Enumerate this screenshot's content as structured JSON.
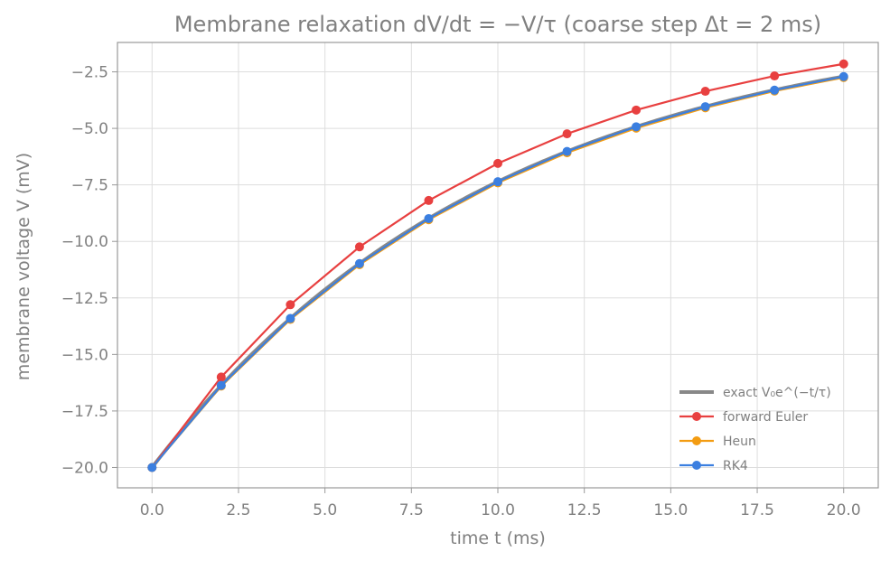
{
  "chart_data": {
    "type": "line",
    "title": "Membrane relaxation dV/dt = −V/τ  (coarse step Δt = 2 ms)",
    "xlabel": "time  t  (ms)",
    "ylabel": "membrane voltage  V  (mV)",
    "xlim": [
      -1.0,
      21.0
    ],
    "ylim": [
      -20.9,
      -1.2
    ],
    "x_ticks": [
      0.0,
      2.5,
      5.0,
      7.5,
      10.0,
      12.5,
      15.0,
      17.5,
      20.0
    ],
    "x_tick_labels": [
      "0.0",
      "2.5",
      "5.0",
      "7.5",
      "10.0",
      "12.5",
      "15.0",
      "17.5",
      "20.0"
    ],
    "y_ticks": [
      -20.0,
      -17.5,
      -15.0,
      -12.5,
      -10.0,
      -7.5,
      -5.0,
      -2.5
    ],
    "y_tick_labels": [
      "−20.0",
      "−17.5",
      "−15.0",
      "−12.5",
      "−10.0",
      "−7.5",
      "−5.0",
      "−2.5"
    ],
    "grid": true,
    "legend_position": "lower-right",
    "exact_curve": {
      "name": "exact  V₀e^(−t/τ)",
      "color": "#888888",
      "V0": -20.0,
      "tau": 10.0,
      "x_range": [
        0,
        20
      ]
    },
    "series": [
      {
        "name": "forward Euler",
        "color": "#e84040",
        "x": [
          0,
          2,
          4,
          6,
          8,
          10,
          12,
          14,
          16,
          18,
          20
        ],
        "y": [
          -20.0,
          -16.0,
          -12.8,
          -10.24,
          -8.19,
          -6.55,
          -5.24,
          -4.19,
          -3.36,
          -2.68,
          -2.15
        ]
      },
      {
        "name": "Heun",
        "color": "#f39c12",
        "x": [
          0,
          2,
          4,
          6,
          8,
          10,
          12,
          14,
          16,
          18,
          20
        ],
        "y": [
          -20.0,
          -16.4,
          -13.45,
          -11.03,
          -9.04,
          -7.41,
          -6.08,
          -4.99,
          -4.09,
          -3.35,
          -2.75
        ]
      },
      {
        "name": "RK4",
        "color": "#3b7fe0",
        "x": [
          0,
          2,
          4,
          6,
          8,
          10,
          12,
          14,
          16,
          18,
          20
        ],
        "y": [
          -20.0,
          -16.37,
          -13.41,
          -10.98,
          -8.99,
          -7.36,
          -6.02,
          -4.93,
          -4.04,
          -3.31,
          -2.71
        ]
      }
    ]
  }
}
